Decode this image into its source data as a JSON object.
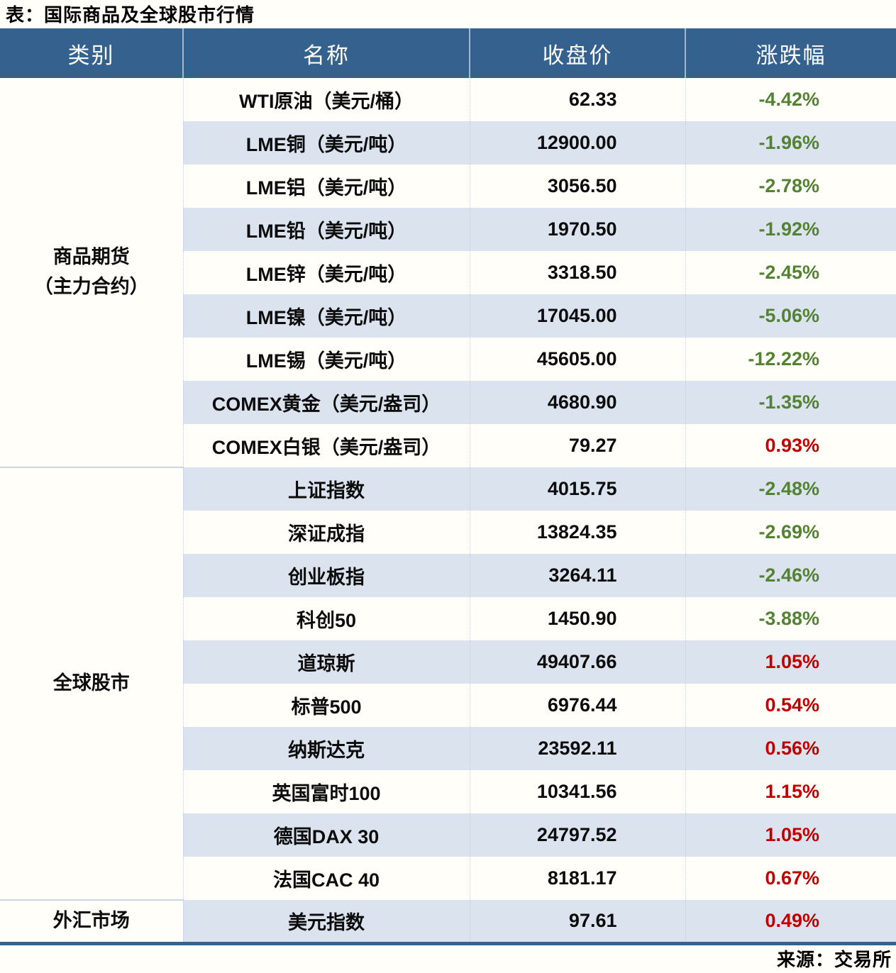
{
  "title": "表：国际商品及全球股市行情",
  "source_note": "来源：交易所",
  "colors": {
    "header_bg": "#35618F",
    "header_text": "#FDFDF6",
    "stripe_blue": "#DBE4EE",
    "paper_white": "#FFFEF8",
    "positive_red": "#C00000",
    "negative_green": "#548235",
    "bottom_border_blue": "#35618F"
  },
  "chart_data": {
    "type": "table",
    "title": "表：国际商品及全球股市行情",
    "source": "来源：交易所",
    "columns": [
      "类别",
      "名称",
      "收盘价",
      "涨跌幅"
    ],
    "groups": [
      {
        "category": "商品期货（主力合约）",
        "category_lines": [
          "商品期货",
          "（主力合约）"
        ],
        "rows": [
          {
            "name": "WTI原油（美元/桶）",
            "close": "62.33",
            "change": "-4.42%"
          },
          {
            "name": "LME铜（美元/吨）",
            "close": "12900.00",
            "change": "-1.96%"
          },
          {
            "name": "LME铝（美元/吨）",
            "close": "3056.50",
            "change": "-2.78%"
          },
          {
            "name": "LME铅（美元/吨）",
            "close": "1970.50",
            "change": "-1.92%"
          },
          {
            "name": "LME锌（美元/吨）",
            "close": "3318.50",
            "change": "-2.45%"
          },
          {
            "name": "LME镍（美元/吨）",
            "close": "17045.00",
            "change": "-5.06%"
          },
          {
            "name": "LME锡（美元/吨）",
            "close": "45605.00",
            "change": "-12.22%"
          },
          {
            "name": "COMEX黄金（美元/盎司）",
            "close": "4680.90",
            "change": "-1.35%"
          },
          {
            "name": "COMEX白银（美元/盎司）",
            "close": "79.27",
            "change": "0.93%"
          }
        ]
      },
      {
        "category": "全球股市",
        "category_lines": [
          "全球股市"
        ],
        "rows": [
          {
            "name": "上证指数",
            "close": "4015.75",
            "change": "-2.48%"
          },
          {
            "name": "深证成指",
            "close": "13824.35",
            "change": "-2.69%"
          },
          {
            "name": "创业板指",
            "close": "3264.11",
            "change": "-2.46%"
          },
          {
            "name": "科创50",
            "close": "1450.90",
            "change": "-3.88%"
          },
          {
            "name": "道琼斯",
            "close": "49407.66",
            "change": "1.05%"
          },
          {
            "name": "标普500",
            "close": "6976.44",
            "change": "0.54%"
          },
          {
            "name": "纳斯达克",
            "close": "23592.11",
            "change": "0.56%"
          },
          {
            "name": "英国富时100",
            "close": "10341.56",
            "change": "1.15%"
          },
          {
            "name": "德国DAX 30",
            "close": "24797.52",
            "change": "1.05%"
          },
          {
            "name": "法国CAC 40",
            "close": "8181.17",
            "change": "0.67%"
          }
        ]
      },
      {
        "category": "外汇市场",
        "category_lines": [
          "外汇市场"
        ],
        "rows": [
          {
            "name": "美元指数",
            "close": "97.61",
            "change": "0.49%"
          }
        ]
      }
    ]
  }
}
